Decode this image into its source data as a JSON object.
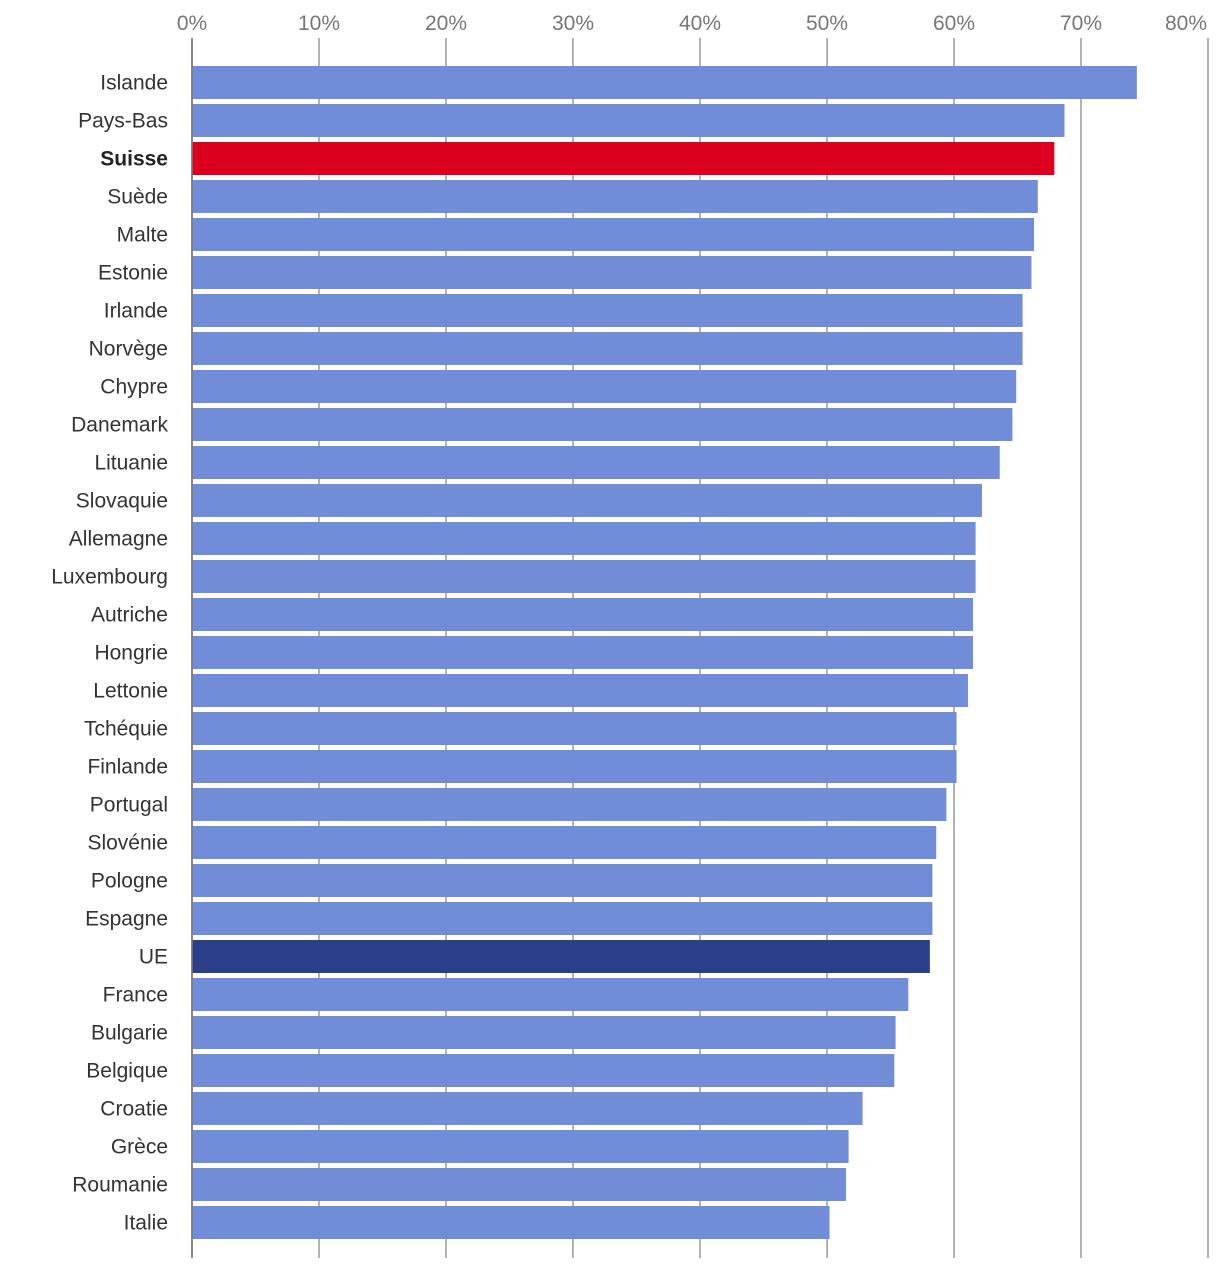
{
  "chart_data": {
    "type": "bar",
    "orientation": "horizontal",
    "title": "",
    "xlabel": "",
    "ylabel": "",
    "xlim": [
      0,
      80
    ],
    "x_ticks": [
      "0%",
      "10%",
      "20%",
      "30%",
      "40%",
      "50%",
      "60%",
      "70%",
      "80%"
    ],
    "x_tick_values": [
      0,
      10,
      20,
      30,
      40,
      50,
      60,
      70,
      80
    ],
    "grid": true,
    "colors": {
      "default": "#728dd8",
      "highlight": "#dc001e",
      "reference": "#2a3f88"
    },
    "highlighted_category": "Suisse",
    "reference_category": "UE",
    "categories": [
      "Islande",
      "Pays-Bas",
      "Suisse",
      "Suède",
      "Malte",
      "Estonie",
      "Irlande",
      "Norvège",
      "Chypre",
      "Danemark",
      "Lituanie",
      "Slovaquie",
      "Allemagne",
      "Luxembourg",
      "Autriche",
      "Hongrie",
      "Lettonie",
      "Tchéquie",
      "Finlande",
      "Portugal",
      "Slovénie",
      "Pologne",
      "Espagne",
      "UE",
      "France",
      "Bulgarie",
      "Belgique",
      "Croatie",
      "Grèce",
      "Roumanie",
      "Italie"
    ],
    "values": [
      74.4,
      68.7,
      67.9,
      66.6,
      66.3,
      66.1,
      65.4,
      65.4,
      64.9,
      64.6,
      63.6,
      62.2,
      61.7,
      61.7,
      61.5,
      61.5,
      61.1,
      60.2,
      60.2,
      59.4,
      58.6,
      58.3,
      58.3,
      58.1,
      56.4,
      55.4,
      55.3,
      52.8,
      51.7,
      51.5,
      50.2
    ]
  }
}
